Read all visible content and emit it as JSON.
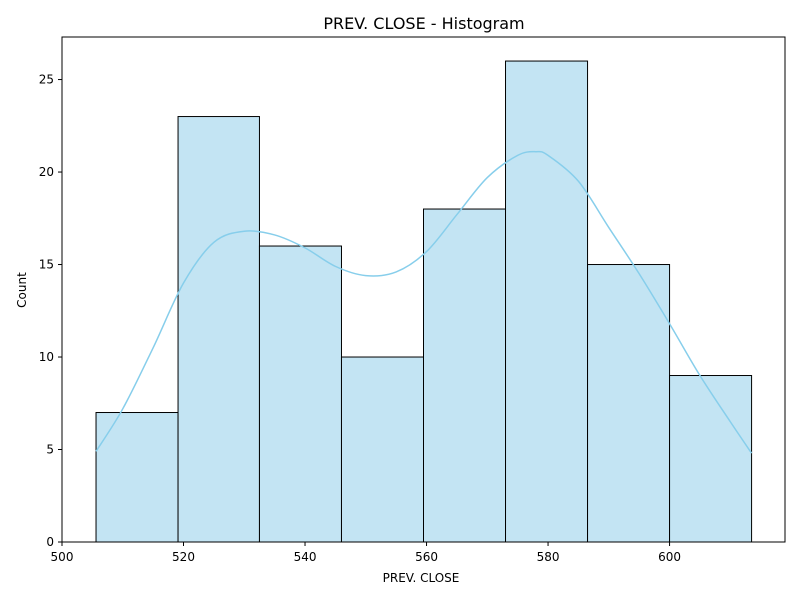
{
  "chart_data": {
    "type": "bar",
    "title": "PREV. CLOSE  - Histogram",
    "xlabel": "PREV. CLOSE",
    "ylabel": "Count",
    "xlim": [
      500,
      619
    ],
    "ylim": [
      0,
      27.3
    ],
    "xticks": [
      500,
      520,
      540,
      560,
      580,
      600
    ],
    "yticks": [
      0,
      5,
      10,
      15,
      20,
      25
    ],
    "bins": [
      {
        "x0": 505.6,
        "x1": 519.1,
        "count": 7
      },
      {
        "x0": 519.1,
        "x1": 532.5,
        "count": 23
      },
      {
        "x0": 532.5,
        "x1": 546.0,
        "count": 16
      },
      {
        "x0": 546.0,
        "x1": 559.5,
        "count": 10
      },
      {
        "x0": 559.5,
        "x1": 573.0,
        "count": 18
      },
      {
        "x0": 573.0,
        "x1": 586.5,
        "count": 26
      },
      {
        "x0": 586.5,
        "x1": 600.0,
        "count": 15
      },
      {
        "x0": 600.0,
        "x1": 613.5,
        "count": 9
      }
    ],
    "kde": {
      "x": [
        505.6,
        510,
        515,
        520,
        525,
        530,
        535,
        540,
        545,
        550,
        555,
        560,
        565,
        570,
        575,
        578,
        580,
        585,
        590,
        595,
        600,
        605,
        610,
        613.5
      ],
      "y": [
        4.9,
        7.2,
        10.5,
        14.0,
        16.2,
        16.8,
        16.6,
        15.9,
        14.9,
        14.4,
        14.6,
        15.7,
        17.7,
        19.7,
        20.9,
        21.1,
        20.9,
        19.5,
        17.0,
        14.5,
        11.8,
        9.0,
        6.5,
        4.8
      ]
    },
    "colors": {
      "bar_fill": "#c3e4f3",
      "bar_edge": "#000000",
      "kde_line": "#87ceeb"
    },
    "grid": false,
    "legend": "none"
  }
}
